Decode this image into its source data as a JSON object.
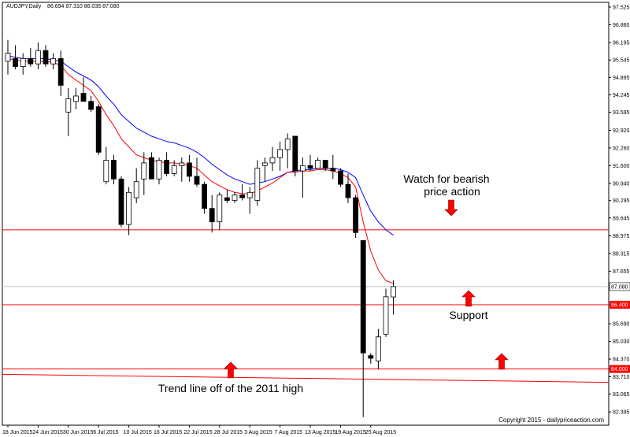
{
  "header": {
    "symbol_text": "AUDJPY,Daily",
    "ohlc_text": "86.694 87.310 86.035 87.080"
  },
  "copyright": "Copyright 2015 - dailypriceaction.com",
  "annotations": {
    "bearish_line1": "Watch for bearish",
    "bearish_line2": "price action",
    "support": "Support",
    "trend": "Trend line off of the 2011 high"
  },
  "colors": {
    "level_line": "#ff0000",
    "arrow": "#ff0000",
    "ema_fast": "#ff0000",
    "ema_slow": "#0000ff",
    "bull_candle": "#ffffff",
    "bear_candle": "#000000",
    "current_price_line": "#c0c0c0"
  },
  "chart_data": {
    "type": "candlestick",
    "title": "",
    "xlabel": "",
    "ylabel": "",
    "ylim": [
      81.9,
      97.7
    ],
    "grid": false,
    "y_ticks": [
      "97.525",
      "96.860",
      "96.195",
      "95.545",
      "94.895",
      "94.245",
      "93.595",
      "92.920",
      "92.260",
      "91.600",
      "90.940",
      "90.295",
      "89.645",
      "88.975",
      "88.315",
      "87.655",
      "87.080",
      "86.400",
      "85.690",
      "85.030",
      "84.370",
      "84.000",
      "83.710",
      "83.065",
      "82.395"
    ],
    "x_ticks": [
      "18 Jun 2015",
      "24 Jun 2015",
      "30 Jun 2015",
      "6 Jul 2015",
      "10 Jul 2015",
      "16 Jul 2015",
      "22 Jul 2015",
      "28 Jul 2015",
      "3 Aug 2015",
      "7 Aug 2015",
      "13 Aug 2015",
      "19 Aug 2015",
      "25 Aug 2015"
    ],
    "x_tick_index": [
      0,
      4,
      8,
      12,
      16,
      20,
      24,
      28,
      32,
      36,
      40,
      44,
      48
    ],
    "candles": [
      {
        "o": 95.5,
        "h": 96.3,
        "l": 95.0,
        "c": 95.8
      },
      {
        "o": 95.6,
        "h": 96.1,
        "l": 95.2,
        "c": 95.3
      },
      {
        "o": 95.3,
        "h": 95.8,
        "l": 95.0,
        "c": 95.6
      },
      {
        "o": 95.6,
        "h": 96.0,
        "l": 95.3,
        "c": 95.4
      },
      {
        "o": 95.4,
        "h": 96.2,
        "l": 95.2,
        "c": 95.9
      },
      {
        "o": 95.9,
        "h": 96.1,
        "l": 95.3,
        "c": 95.4
      },
      {
        "o": 95.4,
        "h": 95.8,
        "l": 95.2,
        "c": 95.6
      },
      {
        "o": 95.6,
        "h": 95.9,
        "l": 94.2,
        "c": 94.6
      },
      {
        "o": 93.6,
        "h": 94.5,
        "l": 92.7,
        "c": 94.1
      },
      {
        "o": 94.0,
        "h": 94.5,
        "l": 93.7,
        "c": 94.2
      },
      {
        "o": 94.3,
        "h": 94.9,
        "l": 94.0,
        "c": 94.0
      },
      {
        "o": 94.0,
        "h": 94.2,
        "l": 93.6,
        "c": 93.7
      },
      {
        "o": 93.8,
        "h": 93.9,
        "l": 92.0,
        "c": 92.1
      },
      {
        "o": 91.0,
        "h": 92.3,
        "l": 90.9,
        "c": 91.8
      },
      {
        "o": 91.8,
        "h": 92.0,
        "l": 90.9,
        "c": 91.1
      },
      {
        "o": 91.1,
        "h": 91.2,
        "l": 89.3,
        "c": 89.4
      },
      {
        "o": 89.4,
        "h": 90.8,
        "l": 89.0,
        "c": 90.6
      },
      {
        "o": 90.4,
        "h": 91.5,
        "l": 90.2,
        "c": 91.0
      },
      {
        "o": 91.1,
        "h": 92.1,
        "l": 90.5,
        "c": 91.7
      },
      {
        "o": 91.9,
        "h": 92.1,
        "l": 91.1,
        "c": 91.1
      },
      {
        "o": 91.1,
        "h": 91.9,
        "l": 90.9,
        "c": 91.8
      },
      {
        "o": 91.8,
        "h": 92.1,
        "l": 91.2,
        "c": 91.3
      },
      {
        "o": 91.3,
        "h": 91.8,
        "l": 91.2,
        "c": 91.6
      },
      {
        "o": 91.6,
        "h": 91.9,
        "l": 91.0,
        "c": 91.7
      },
      {
        "o": 91.7,
        "h": 92.0,
        "l": 91.0,
        "c": 91.2
      },
      {
        "o": 91.2,
        "h": 91.9,
        "l": 90.8,
        "c": 90.9
      },
      {
        "o": 90.9,
        "h": 91.0,
        "l": 89.8,
        "c": 90.0
      },
      {
        "o": 90.0,
        "h": 90.5,
        "l": 89.1,
        "c": 89.5
      },
      {
        "o": 89.5,
        "h": 90.6,
        "l": 89.2,
        "c": 90.5
      },
      {
        "o": 90.4,
        "h": 90.7,
        "l": 90.2,
        "c": 90.3
      },
      {
        "o": 90.3,
        "h": 90.6,
        "l": 90.2,
        "c": 90.5
      },
      {
        "o": 90.5,
        "h": 90.9,
        "l": 90.3,
        "c": 90.4
      },
      {
        "o": 90.4,
        "h": 90.8,
        "l": 89.8,
        "c": 90.6
      },
      {
        "o": 90.3,
        "h": 91.8,
        "l": 90.1,
        "c": 91.5
      },
      {
        "o": 91.6,
        "h": 91.9,
        "l": 91.0,
        "c": 91.7
      },
      {
        "o": 91.7,
        "h": 92.3,
        "l": 91.4,
        "c": 91.9
      },
      {
        "o": 91.9,
        "h": 92.5,
        "l": 91.4,
        "c": 92.2
      },
      {
        "o": 92.2,
        "h": 92.8,
        "l": 91.5,
        "c": 92.6
      },
      {
        "o": 92.7,
        "h": 92.7,
        "l": 91.2,
        "c": 91.4
      },
      {
        "o": 91.4,
        "h": 91.9,
        "l": 90.4,
        "c": 91.6
      },
      {
        "o": 91.6,
        "h": 92.0,
        "l": 91.4,
        "c": 91.5
      },
      {
        "o": 91.5,
        "h": 91.9,
        "l": 91.5,
        "c": 91.8
      },
      {
        "o": 91.8,
        "h": 91.8,
        "l": 91.4,
        "c": 91.5
      },
      {
        "o": 91.5,
        "h": 92.0,
        "l": 91.1,
        "c": 91.4
      },
      {
        "o": 91.4,
        "h": 91.5,
        "l": 90.8,
        "c": 90.9
      },
      {
        "o": 90.9,
        "h": 91.3,
        "l": 90.2,
        "c": 90.4
      },
      {
        "o": 90.4,
        "h": 90.5,
        "l": 88.9,
        "c": 89.1
      },
      {
        "o": 88.8,
        "h": 88.8,
        "l": 82.2,
        "c": 84.6
      },
      {
        "o": 84.5,
        "h": 84.6,
        "l": 84.2,
        "c": 84.4
      },
      {
        "o": 84.3,
        "h": 85.5,
        "l": 84.0,
        "c": 85.2
      },
      {
        "o": 85.3,
        "h": 87.0,
        "l": 85.2,
        "c": 86.7
      },
      {
        "o": 86.694,
        "h": 87.31,
        "l": 86.035,
        "c": 87.08
      }
    ],
    "ema_fast": [
      95.6,
      95.55,
      95.5,
      95.5,
      95.5,
      95.5,
      95.45,
      95.35,
      95.0,
      94.8,
      94.6,
      94.4,
      94.0,
      93.5,
      93.1,
      92.6,
      92.3,
      92.0,
      91.9,
      91.8,
      91.75,
      91.7,
      91.7,
      91.65,
      91.6,
      91.5,
      91.25,
      91.0,
      90.85,
      90.7,
      90.6,
      90.55,
      90.55,
      90.65,
      90.8,
      90.95,
      91.15,
      91.35,
      91.35,
      91.4,
      91.4,
      91.45,
      91.45,
      91.4,
      91.3,
      91.15,
      90.8,
      89.5,
      88.4,
      87.7,
      87.3,
      87.2
    ],
    "ema_slow": [
      95.7,
      95.65,
      95.6,
      95.6,
      95.6,
      95.6,
      95.55,
      95.5,
      95.3,
      95.1,
      94.95,
      94.8,
      94.55,
      94.2,
      93.9,
      93.5,
      93.25,
      93.0,
      92.85,
      92.7,
      92.6,
      92.5,
      92.45,
      92.35,
      92.25,
      92.1,
      91.9,
      91.65,
      91.45,
      91.25,
      91.1,
      91.0,
      90.9,
      90.95,
      91.0,
      91.1,
      91.2,
      91.35,
      91.4,
      91.45,
      91.45,
      91.5,
      91.5,
      91.5,
      91.45,
      91.35,
      91.15,
      90.5,
      89.9,
      89.5,
      89.2,
      89.0
    ],
    "levels": [
      {
        "value": 89.2,
        "label": "89.200"
      },
      {
        "value": 86.4,
        "label": "86.400"
      },
      {
        "value": 84.0,
        "label": "84.000"
      }
    ],
    "current_price": {
      "value": 87.08,
      "label": "87.080"
    },
    "trend_line": {
      "start_value": 83.8,
      "end_value": 83.5
    }
  }
}
